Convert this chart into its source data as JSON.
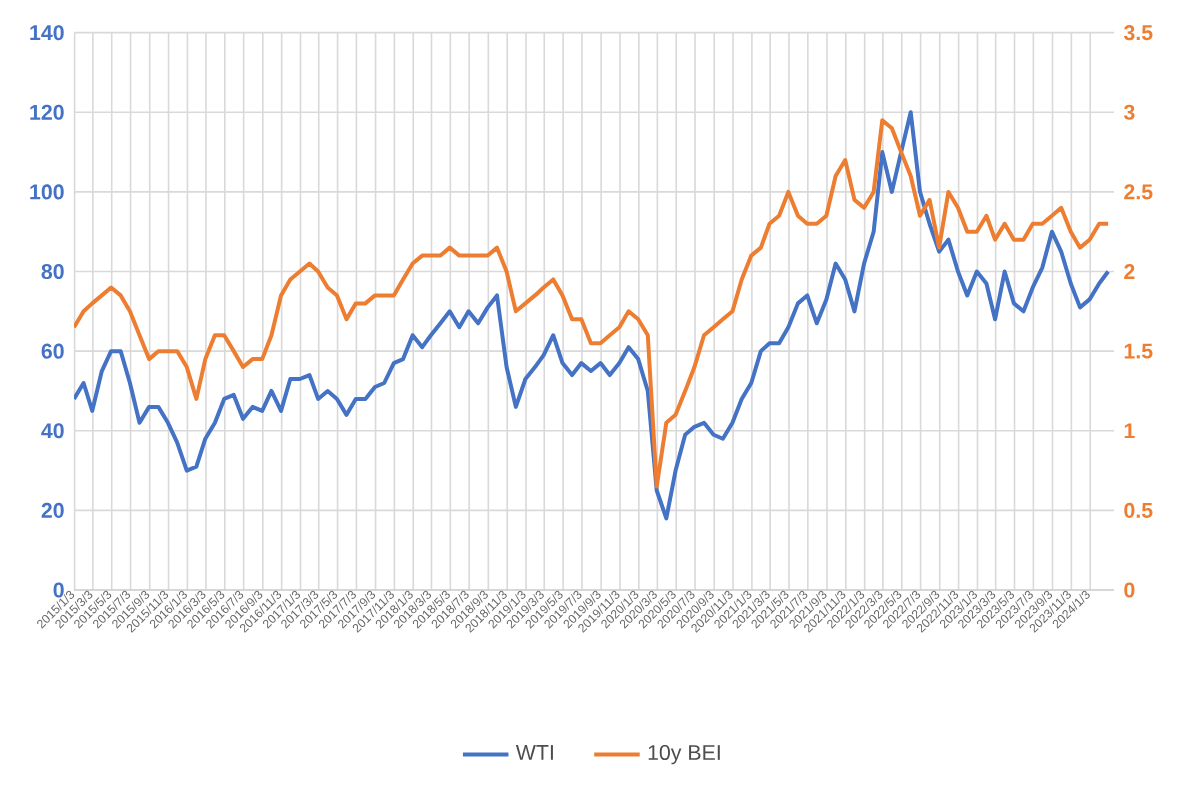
{
  "chart_data": {
    "type": "line",
    "x": [
      "2015-01",
      "2015-02",
      "2015-03",
      "2015-04",
      "2015-05",
      "2015-06",
      "2015-07",
      "2015-08",
      "2015-09",
      "2015-10",
      "2015-11",
      "2015-12",
      "2016-01",
      "2016-02",
      "2016-03",
      "2016-04",
      "2016-05",
      "2016-06",
      "2016-07",
      "2016-08",
      "2016-09",
      "2016-10",
      "2016-11",
      "2016-12",
      "2017-01",
      "2017-02",
      "2017-03",
      "2017-04",
      "2017-05",
      "2017-06",
      "2017-07",
      "2017-08",
      "2017-09",
      "2017-10",
      "2017-11",
      "2017-12",
      "2018-01",
      "2018-02",
      "2018-03",
      "2018-04",
      "2018-05",
      "2018-06",
      "2018-07",
      "2018-08",
      "2018-09",
      "2018-10",
      "2018-11",
      "2018-12",
      "2019-01",
      "2019-02",
      "2019-03",
      "2019-04",
      "2019-05",
      "2019-06",
      "2019-07",
      "2019-08",
      "2019-09",
      "2019-10",
      "2019-11",
      "2019-12",
      "2020-01",
      "2020-02",
      "2020-03",
      "2020-04",
      "2020-05",
      "2020-06",
      "2020-07",
      "2020-08",
      "2020-09",
      "2020-10",
      "2020-11",
      "2020-12",
      "2021-01",
      "2021-02",
      "2021-03",
      "2021-04",
      "2021-05",
      "2021-06",
      "2021-07",
      "2021-08",
      "2021-09",
      "2021-10",
      "2021-11",
      "2021-12",
      "2022-01",
      "2022-02",
      "2022-03",
      "2022-04",
      "2022-05",
      "2022-06",
      "2022-07",
      "2022-08",
      "2022-09",
      "2022-10",
      "2022-11",
      "2022-12",
      "2023-01",
      "2023-02",
      "2023-03",
      "2023-04",
      "2023-05",
      "2023-06",
      "2023-07",
      "2023-08",
      "2023-09",
      "2023-10",
      "2023-11",
      "2023-12",
      "2024-01",
      "2024-02",
      "2024-03"
    ],
    "series": [
      {
        "name": "WTI",
        "color": "#4472c4",
        "values": [
          48,
          52,
          45,
          55,
          60,
          60,
          52,
          42,
          46,
          46,
          42,
          37,
          30,
          31,
          38,
          42,
          48,
          49,
          43,
          46,
          45,
          50,
          45,
          53,
          53,
          54,
          48,
          50,
          48,
          44,
          48,
          48,
          51,
          52,
          57,
          58,
          64,
          61,
          64,
          67,
          70,
          66,
          70,
          67,
          71,
          74,
          56,
          46,
          53,
          56,
          59,
          64,
          57,
          54,
          57,
          55,
          57,
          54,
          57,
          61,
          58,
          50,
          25,
          18,
          30,
          39,
          41,
          42,
          39,
          38,
          42,
          48,
          52,
          60,
          62,
          62,
          66,
          72,
          74,
          67,
          73,
          82,
          78,
          70,
          82,
          90,
          110,
          100,
          110,
          120,
          100,
          92,
          85,
          88,
          80,
          74,
          80,
          77,
          68,
          80,
          72,
          70,
          76,
          81,
          90,
          85,
          77,
          71,
          73,
          77,
          80
        ]
      },
      {
        "name": "10y BEI",
        "color": "#ed7d31",
        "axis": "y2",
        "values": [
          1.65,
          1.75,
          1.8,
          1.85,
          1.9,
          1.85,
          1.75,
          1.6,
          1.45,
          1.5,
          1.5,
          1.5,
          1.4,
          1.2,
          1.45,
          1.6,
          1.6,
          1.5,
          1.4,
          1.45,
          1.45,
          1.6,
          1.85,
          1.95,
          2.0,
          2.05,
          2.0,
          1.9,
          1.85,
          1.7,
          1.8,
          1.8,
          1.85,
          1.85,
          1.85,
          1.95,
          2.05,
          2.1,
          2.1,
          2.1,
          2.15,
          2.1,
          2.1,
          2.1,
          2.1,
          2.15,
          2.0,
          1.75,
          1.8,
          1.85,
          1.9,
          1.95,
          1.85,
          1.7,
          1.7,
          1.55,
          1.55,
          1.6,
          1.65,
          1.75,
          1.7,
          1.6,
          0.65,
          1.05,
          1.1,
          1.25,
          1.4,
          1.6,
          1.65,
          1.7,
          1.75,
          1.95,
          2.1,
          2.15,
          2.3,
          2.35,
          2.5,
          2.35,
          2.3,
          2.3,
          2.35,
          2.6,
          2.7,
          2.45,
          2.4,
          2.5,
          2.95,
          2.9,
          2.75,
          2.6,
          2.35,
          2.45,
          2.15,
          2.5,
          2.4,
          2.25,
          2.25,
          2.35,
          2.2,
          2.3,
          2.2,
          2.2,
          2.3,
          2.3,
          2.35,
          2.4,
          2.25,
          2.15,
          2.2,
          2.3,
          2.3
        ]
      }
    ],
    "xlim": [
      "2015-01-01",
      "2024-03-20"
    ],
    "xticks": [
      {
        "value": "2015-01-03",
        "label": "2015/1/3"
      },
      {
        "value": "2015-03-03",
        "label": "2015/3/3"
      },
      {
        "value": "2015-05-03",
        "label": "2015/5/3"
      },
      {
        "value": "2015-07-03",
        "label": "2015/7/3"
      },
      {
        "value": "2015-09-03",
        "label": "2015/9/3"
      },
      {
        "value": "2015-11-03",
        "label": "2015/11/3"
      },
      {
        "value": "2016-01-03",
        "label": "2016/1/3"
      },
      {
        "value": "2016-03-03",
        "label": "2016/3/3"
      },
      {
        "value": "2016-05-03",
        "label": "2016/5/3"
      },
      {
        "value": "2016-07-03",
        "label": "2016/7/3"
      },
      {
        "value": "2016-09-03",
        "label": "2016/9/3"
      },
      {
        "value": "2016-11-03",
        "label": "2016/11/3"
      },
      {
        "value": "2017-01-03",
        "label": "2017/1/3"
      },
      {
        "value": "2017-03-03",
        "label": "2017/3/3"
      },
      {
        "value": "2017-05-03",
        "label": "2017/5/3"
      },
      {
        "value": "2017-07-03",
        "label": "2017/7/3"
      },
      {
        "value": "2017-09-03",
        "label": "2017/9/3"
      },
      {
        "value": "2017-11-03",
        "label": "2017/11/3"
      },
      {
        "value": "2018-01-03",
        "label": "2018/1/3"
      },
      {
        "value": "2018-03-03",
        "label": "2018/3/3"
      },
      {
        "value": "2018-05-03",
        "label": "2018/5/3"
      },
      {
        "value": "2018-07-03",
        "label": "2018/7/3"
      },
      {
        "value": "2018-09-03",
        "label": "2018/9/3"
      },
      {
        "value": "2018-11-03",
        "label": "2018/11/3"
      },
      {
        "value": "2019-01-03",
        "label": "2019/1/3"
      },
      {
        "value": "2019-03-03",
        "label": "2019/3/3"
      },
      {
        "value": "2019-05-03",
        "label": "2019/5/3"
      },
      {
        "value": "2019-07-03",
        "label": "2019/7/3"
      },
      {
        "value": "2019-09-03",
        "label": "2019/9/3"
      },
      {
        "value": "2019-11-03",
        "label": "2019/11/3"
      },
      {
        "value": "2020-01-03",
        "label": "2020/1/3"
      },
      {
        "value": "2020-03-03",
        "label": "2020/3/3"
      },
      {
        "value": "2020-05-03",
        "label": "2020/5/3"
      },
      {
        "value": "2020-07-03",
        "label": "2020/7/3"
      },
      {
        "value": "2020-09-03",
        "label": "2020/9/3"
      },
      {
        "value": "2020-11-03",
        "label": "2020/11/3"
      },
      {
        "value": "2021-01-03",
        "label": "2021/1/3"
      },
      {
        "value": "2021-03-03",
        "label": "2021/3/3"
      },
      {
        "value": "2021-05-03",
        "label": "2021/5/3"
      },
      {
        "value": "2021-07-03",
        "label": "2021/7/3"
      },
      {
        "value": "2021-09-03",
        "label": "2021/9/3"
      },
      {
        "value": "2021-11-03",
        "label": "2021/11/3"
      },
      {
        "value": "2022-01-03",
        "label": "2022/1/3"
      },
      {
        "value": "2022-03-03",
        "label": "2022/3/3"
      },
      {
        "value": "2022-05-03",
        "label": "2022/5/3"
      },
      {
        "value": "2022-07-03",
        "label": "2022/7/3"
      },
      {
        "value": "2022-09-03",
        "label": "2022/9/3"
      },
      {
        "value": "2022-11-03",
        "label": "2022/11/3"
      },
      {
        "value": "2023-01-03",
        "label": "2023/1/3"
      },
      {
        "value": "2023-03-03",
        "label": "2023/3/3"
      },
      {
        "value": "2023-05-03",
        "label": "2023/5/3"
      },
      {
        "value": "2023-07-03",
        "label": "2023/7/3"
      },
      {
        "value": "2023-09-03",
        "label": "2023/9/3"
      },
      {
        "value": "2023-11-03",
        "label": "2023/11/3"
      },
      {
        "value": "2024-01-03",
        "label": "2024/1/3"
      }
    ],
    "ylim": [
      0,
      140
    ],
    "yticks": [
      0,
      20,
      40,
      60,
      80,
      100,
      120,
      140
    ],
    "y2lim": [
      0,
      3.5
    ],
    "y2ticks": [
      0,
      0.5,
      1,
      1.5,
      2,
      2.5,
      3,
      3.5
    ],
    "grid": true,
    "legend": "bottom"
  }
}
